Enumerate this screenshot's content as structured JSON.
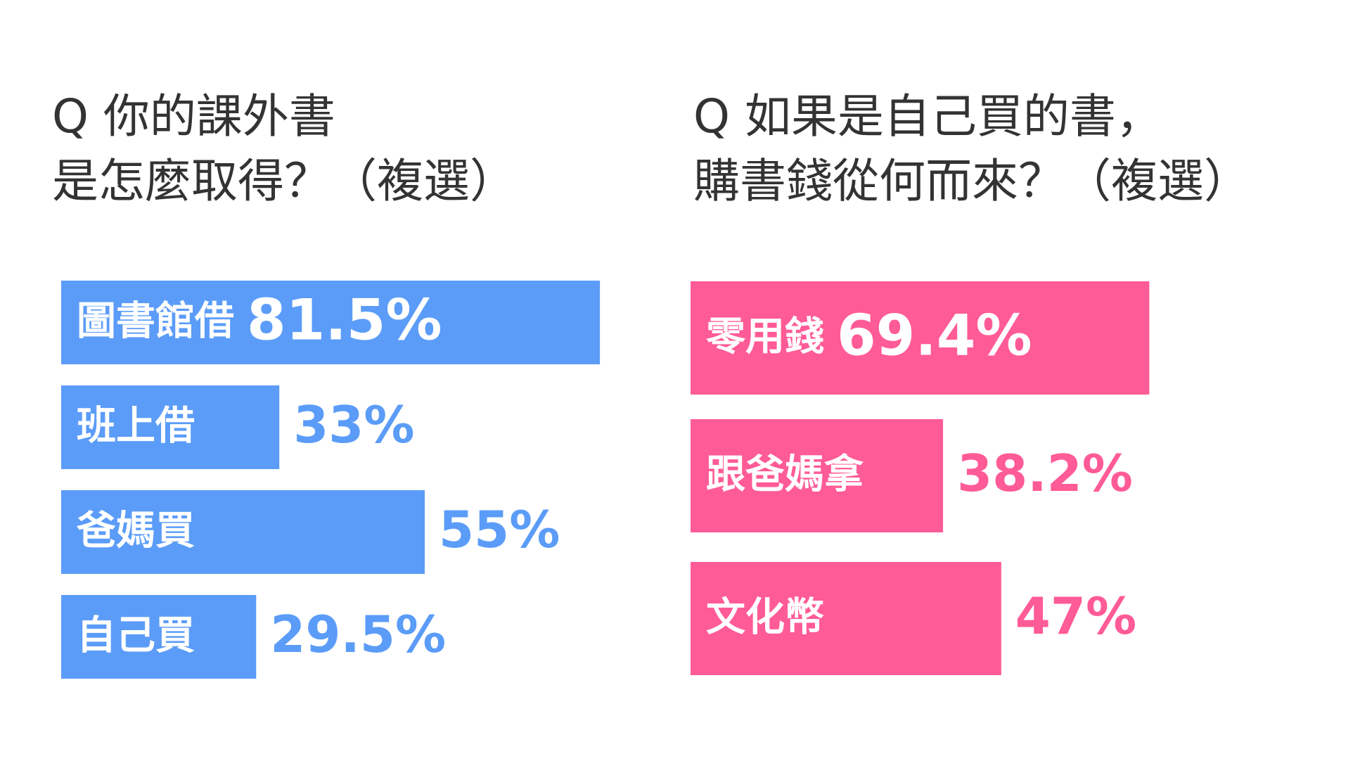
{
  "chart_data": [
    {
      "type": "barh",
      "title": [
        "Q  你的課外書",
        "是怎麼取得？（複選）"
      ],
      "categories": [
        "圖書館借",
        "班上借",
        "爸媽買",
        "自己買"
      ],
      "values": [
        81.5,
        33,
        55,
        29.5
      ],
      "value_labels": [
        "81.5%",
        "33%",
        "55%",
        "29.5%"
      ],
      "color": "#5b9cf8"
    },
    {
      "type": "barh",
      "title": [
        "Q  如果是自己買的書，",
        "購書錢從何而來？（複選）"
      ],
      "categories": [
        "零用錢",
        "跟爸媽拿",
        "文化幣"
      ],
      "values": [
        69.4,
        38.2,
        47
      ],
      "value_labels": [
        "69.4%",
        "38.2%",
        "47%"
      ],
      "color": "#ff5b96"
    }
  ]
}
